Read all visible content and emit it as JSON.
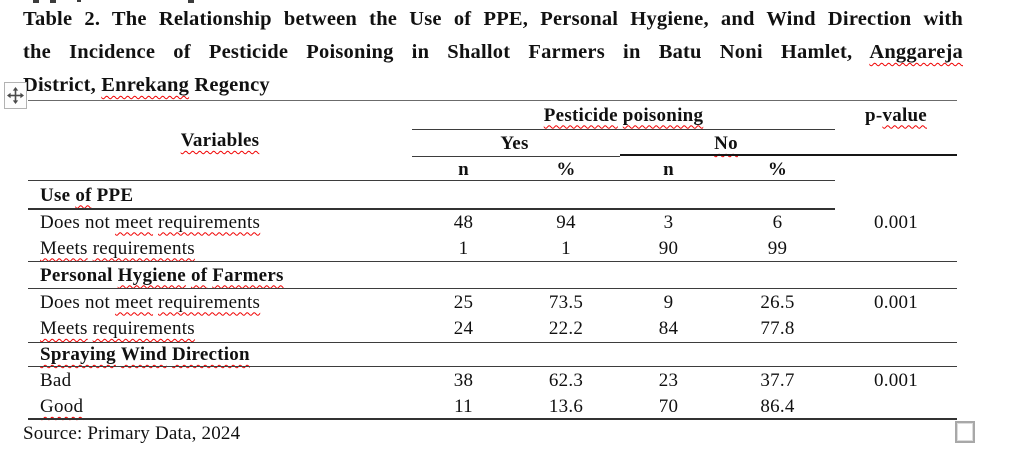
{
  "colors": {
    "squiggle": "#f00000",
    "table_border": "#3d3d3d",
    "text": "#111111"
  },
  "title": {
    "lines": [
      {
        "justify": true,
        "segments": [
          {
            "t": "Table 2. The Relationship between the Use of PPE, Personal Hygiene, and Wind Direction with",
            "sq": false
          }
        ]
      },
      {
        "justify": true,
        "segments": [
          {
            "t": "the Incidence of Pesticide Poisoning in Shallot Farmers in Batu Noni Hamlet, ",
            "sq": false
          },
          {
            "t": "Anggareja",
            "sq": true
          }
        ]
      },
      {
        "justify": false,
        "segments": [
          {
            "t": "District, ",
            "sq": false
          },
          {
            "t": "Enrekang",
            "sq": true
          },
          {
            "t": " Regency",
            "sq": false
          }
        ]
      }
    ]
  },
  "table": {
    "headers": {
      "variables": [
        {
          "t": "Variables",
          "sq": true
        }
      ],
      "pesticide_poisoning": [
        {
          "t": "Pesticide",
          "sq": true
        },
        {
          "t": " ",
          "sq": false
        },
        {
          "t": "poisoning",
          "sq": true
        }
      ],
      "p_value": [
        {
          "t": "p-",
          "sq": false
        },
        {
          "t": "value",
          "sq": true
        }
      ],
      "yes": [
        {
          "t": "Yes",
          "sq": false
        }
      ],
      "no": [
        {
          "t": "No",
          "sq": true
        }
      ],
      "yes_n": [
        {
          "t": "n",
          "sq": false
        }
      ],
      "yes_pct": [
        {
          "t": "%",
          "sq": false
        }
      ],
      "no_n": [
        {
          "t": "n",
          "sq": false
        }
      ],
      "no_pct": [
        {
          "t": "%",
          "sq": false
        }
      ]
    },
    "groups": [
      {
        "title": [
          {
            "t": "Use ",
            "sq": false
          },
          {
            "t": "of",
            "sq": true
          },
          {
            "t": " PPE",
            "sq": false
          }
        ],
        "rows": [
          {
            "label": [
              {
                "t": "Does not ",
                "sq": false
              },
              {
                "t": "meet",
                "sq": true
              },
              {
                "t": " ",
                "sq": false
              },
              {
                "t": "requirements",
                "sq": true
              }
            ],
            "values": [
              "48",
              "94",
              "3",
              "6"
            ],
            "p": "0.001"
          },
          {
            "label": [
              {
                "t": "Meets",
                "sq": true
              },
              {
                "t": " ",
                "sq": false
              },
              {
                "t": "requirements",
                "sq": true
              }
            ],
            "values": [
              "1",
              "1",
              "90",
              "99"
            ],
            "p": ""
          }
        ]
      },
      {
        "title": [
          {
            "t": "Personal ",
            "sq": false
          },
          {
            "t": "Hygiene",
            "sq": true
          },
          {
            "t": " ",
            "sq": false
          },
          {
            "t": "of",
            "sq": true
          },
          {
            "t": " ",
            "sq": false
          },
          {
            "t": "Farmers",
            "sq": true
          }
        ],
        "rows": [
          {
            "label": [
              {
                "t": "Does not ",
                "sq": false
              },
              {
                "t": "meet",
                "sq": true
              },
              {
                "t": " ",
                "sq": false
              },
              {
                "t": "requirements",
                "sq": true
              }
            ],
            "values": [
              "25",
              "73.5",
              "9",
              "26.5"
            ],
            "p": "0.001"
          },
          {
            "label": [
              {
                "t": "Meets",
                "sq": true
              },
              {
                "t": " ",
                "sq": false
              },
              {
                "t": "requirements",
                "sq": true
              }
            ],
            "values": [
              "24",
              "22.2",
              "84",
              "77.8"
            ],
            "p": ""
          }
        ]
      },
      {
        "title": [
          {
            "t": "Spraying",
            "sq": true
          },
          {
            "t": " ",
            "sq": false
          },
          {
            "t": "Wind",
            "sq": true
          },
          {
            "t": " ",
            "sq": false
          },
          {
            "t": "Direction",
            "sq": true
          }
        ],
        "rows": [
          {
            "label": [
              {
                "t": "Bad",
                "sq": false
              }
            ],
            "values": [
              "38",
              "62.3",
              "23",
              "37.7"
            ],
            "p": "0.001"
          },
          {
            "label": [
              {
                "t": "Good",
                "sq": true
              }
            ],
            "values": [
              "11",
              "13.6",
              "70",
              "86.4"
            ],
            "p": ""
          }
        ]
      }
    ]
  },
  "source": "Source: Primary Data, 2024",
  "icons": {
    "move_handle": "table-move-handle-icon",
    "resize_handle": "table-resize-handle"
  }
}
